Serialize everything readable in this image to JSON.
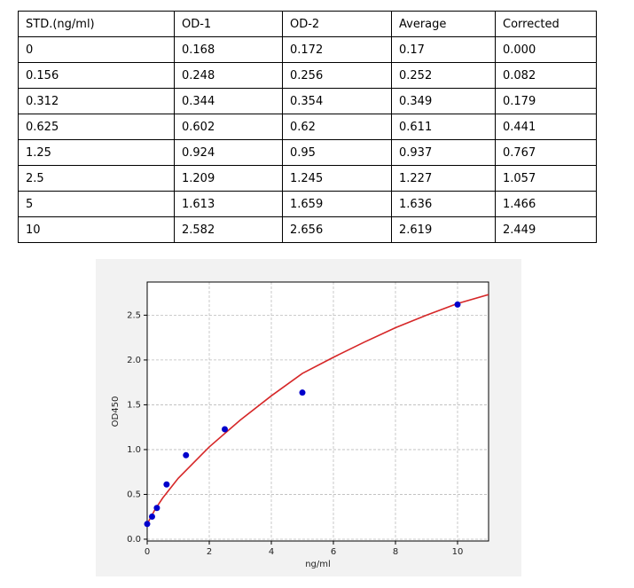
{
  "table": {
    "header": [
      "STD.(ng/ml)",
      "OD-1",
      "OD-2",
      "Average",
      "Corrected"
    ],
    "rows": [
      [
        "0",
        "0.168",
        "0.172",
        "0.17",
        "0.000"
      ],
      [
        "0.156",
        "0.248",
        "0.256",
        "0.252",
        "0.082"
      ],
      [
        "0.312",
        "0.344",
        "0.354",
        "0.349",
        "0.179"
      ],
      [
        "0.625",
        "0.602",
        "0.62",
        "0.611",
        "0.441"
      ],
      [
        "1.25",
        "0.924",
        "0.95",
        "0.937",
        "0.767"
      ],
      [
        "2.5",
        "1.209",
        "1.245",
        "1.227",
        "1.057"
      ],
      [
        "5",
        "1.613",
        "1.659",
        "1.636",
        "1.466"
      ],
      [
        "10",
        "2.582",
        "2.656",
        "2.619",
        "2.449"
      ]
    ]
  },
  "chart_data": {
    "type": "scatter",
    "xlabel": "ng/ml",
    "ylabel": "OD450",
    "x": [
      0,
      0.156,
      0.312,
      0.625,
      1.25,
      2.5,
      5,
      10
    ],
    "values": [
      0.17,
      0.252,
      0.349,
      0.611,
      0.937,
      1.227,
      1.636,
      2.619
    ],
    "color": "#0000cc",
    "fit": {
      "color": "#d62728",
      "x": [
        0,
        0.25,
        0.5,
        1,
        2,
        3,
        4,
        5,
        6,
        7,
        8,
        9,
        10,
        11
      ],
      "values": [
        0.17,
        0.33,
        0.46,
        0.68,
        1.03,
        1.33,
        1.6,
        1.85,
        2.03,
        2.2,
        2.36,
        2.5,
        2.63,
        2.73
      ]
    },
    "xlim": [
      0,
      11
    ],
    "ylim": [
      -0.02,
      2.87
    ],
    "xticks": [
      0,
      2,
      4,
      6,
      8,
      10
    ],
    "yticks": [
      {
        "value": 0,
        "label": "0.0"
      },
      {
        "value": 0.5,
        "label": "0.5"
      },
      {
        "value": 1,
        "label": "1.0"
      },
      {
        "value": 1.5,
        "label": "1.5"
      },
      {
        "value": 2,
        "label": "2.0"
      },
      {
        "value": 2.5,
        "label": "2.5"
      }
    ],
    "grid": true
  }
}
